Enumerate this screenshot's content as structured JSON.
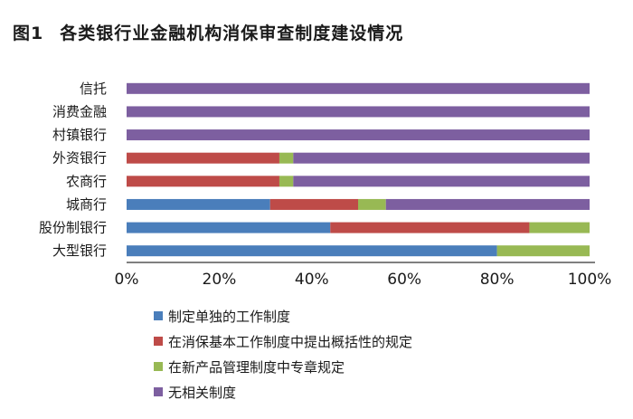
{
  "figure": {
    "number": "图1",
    "title": "各类银行业金融机构消保审查制度建设情况"
  },
  "colors": {
    "series": [
      "#4a7ebb",
      "#be4b48",
      "#98b954",
      "#7d5fa0"
    ]
  },
  "chart_data": {
    "type": "bar",
    "orientation": "horizontal",
    "stacked": true,
    "categories": [
      "信托",
      "消费金融",
      "村镇银行",
      "外资银行",
      "农商行",
      "城商行",
      "股份制银行",
      "大型银行"
    ],
    "series": [
      {
        "name": "制定单独的工作制度",
        "values": [
          0,
          0,
          0,
          0,
          0,
          31,
          44,
          80
        ]
      },
      {
        "name": "在消保基本工作制度中提出概括性的规定",
        "values": [
          0,
          0,
          0,
          33,
          33,
          19,
          43,
          0
        ]
      },
      {
        "name": "在新产品管理制度中专章规定",
        "values": [
          0,
          0,
          0,
          3,
          3,
          6,
          13,
          20
        ]
      },
      {
        "name": "无相关制度",
        "values": [
          100,
          100,
          100,
          64,
          64,
          44,
          0,
          0
        ]
      }
    ],
    "xlim": [
      0,
      100
    ],
    "xticks": [
      "0%",
      "20%",
      "40%",
      "60%",
      "80%",
      "100%"
    ],
    "grid": false,
    "legend_position": "bottom"
  }
}
